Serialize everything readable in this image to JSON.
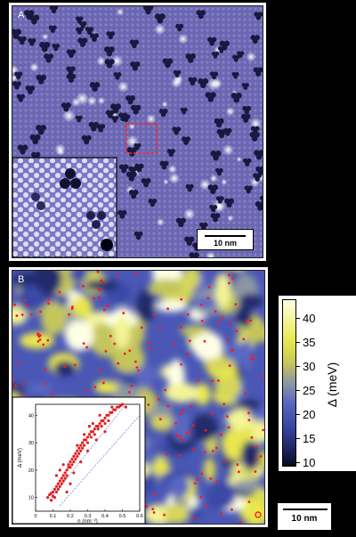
{
  "panel_a": {
    "label": "A",
    "scalebar_label": "10 nm"
  },
  "panel_b": {
    "label": "B"
  },
  "colorbar": {
    "title": "Δ (meV)",
    "ticks": [
      "40",
      "35",
      "30",
      "25",
      "20",
      "15",
      "10"
    ],
    "range": [
      9,
      44
    ]
  },
  "scalebar_b": {
    "label": "10 nm"
  },
  "chart_data": {
    "type": "scatter",
    "xlabel": "n (nm⁻²)",
    "ylabel": "Δ (meV)",
    "xlim": [
      0,
      0.6
    ],
    "ylim": [
      5,
      44
    ],
    "x_ticks": [
      "0",
      "0.1",
      "0.2",
      "0.3",
      "0.4",
      "0.5",
      "0.6"
    ],
    "y_ticks": [
      "10",
      "20",
      "30",
      "40"
    ],
    "points": [
      [
        0.07,
        10
      ],
      [
        0.08,
        11
      ],
      [
        0.09,
        11.5
      ],
      [
        0.1,
        12
      ],
      [
        0.1,
        10.5
      ],
      [
        0.11,
        13
      ],
      [
        0.12,
        14
      ],
      [
        0.12,
        12
      ],
      [
        0.13,
        15
      ],
      [
        0.13,
        13
      ],
      [
        0.14,
        16
      ],
      [
        0.14,
        14
      ],
      [
        0.15,
        17
      ],
      [
        0.15,
        15
      ],
      [
        0.16,
        18
      ],
      [
        0.16,
        16
      ],
      [
        0.17,
        19
      ],
      [
        0.17,
        17
      ],
      [
        0.18,
        20
      ],
      [
        0.18,
        18
      ],
      [
        0.19,
        21
      ],
      [
        0.19,
        22
      ],
      [
        0.2,
        23
      ],
      [
        0.2,
        21
      ],
      [
        0.21,
        24
      ],
      [
        0.21,
        22
      ],
      [
        0.22,
        25
      ],
      [
        0.22,
        23
      ],
      [
        0.23,
        26
      ],
      [
        0.23,
        24
      ],
      [
        0.24,
        27
      ],
      [
        0.24,
        25
      ],
      [
        0.25,
        28
      ],
      [
        0.25,
        26
      ],
      [
        0.26,
        29
      ],
      [
        0.26,
        27
      ],
      [
        0.27,
        30
      ],
      [
        0.27,
        28
      ],
      [
        0.28,
        31
      ],
      [
        0.28,
        29
      ],
      [
        0.29,
        31
      ],
      [
        0.3,
        32
      ],
      [
        0.3,
        30
      ],
      [
        0.31,
        33
      ],
      [
        0.32,
        34
      ],
      [
        0.32,
        32
      ],
      [
        0.33,
        34
      ],
      [
        0.34,
        35
      ],
      [
        0.34,
        33
      ],
      [
        0.35,
        36
      ],
      [
        0.36,
        36
      ],
      [
        0.36,
        35
      ],
      [
        0.37,
        37
      ],
      [
        0.38,
        38
      ],
      [
        0.38,
        36
      ],
      [
        0.39,
        38
      ],
      [
        0.4,
        39
      ],
      [
        0.4,
        37
      ],
      [
        0.41,
        40
      ],
      [
        0.42,
        40
      ],
      [
        0.42,
        38
      ],
      [
        0.43,
        41
      ],
      [
        0.44,
        41
      ],
      [
        0.45,
        42
      ],
      [
        0.46,
        42
      ],
      [
        0.47,
        43
      ],
      [
        0.48,
        43
      ],
      [
        0.49,
        43.5
      ],
      [
        0.5,
        44
      ],
      [
        0.52,
        43
      ],
      [
        0.18,
        12
      ],
      [
        0.2,
        15
      ],
      [
        0.22,
        19
      ],
      [
        0.26,
        23
      ],
      [
        0.3,
        27
      ],
      [
        0.35,
        31
      ],
      [
        0.4,
        34
      ],
      [
        0.12,
        18
      ],
      [
        0.14,
        20
      ],
      [
        0.16,
        22
      ],
      [
        0.28,
        33
      ],
      [
        0.33,
        37
      ],
      [
        0.37,
        40
      ],
      [
        0.44,
        43
      ],
      [
        0.09,
        9
      ],
      [
        0.11,
        10
      ],
      [
        0.24,
        29
      ],
      [
        0.31,
        36
      ]
    ],
    "guide_lines": [
      {
        "x": [
          0.08,
          0.52
        ],
        "y": [
          9,
          44
        ]
      },
      {
        "x": [
          0.14,
          0.6
        ],
        "y": [
          7,
          40
        ]
      }
    ]
  }
}
